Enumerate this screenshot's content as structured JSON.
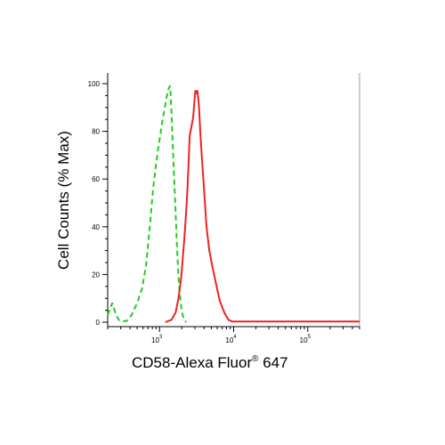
{
  "chart_data": {
    "type": "line",
    "title": "",
    "xlabel": "CD58-Alexa Fluor",
    "xlabel_superscript": "®",
    "xlabel_suffix": " 647",
    "ylabel": "Cell Counts (% Max)",
    "x_scale": "log",
    "xlim": [
      200,
      500000
    ],
    "ylim": [
      0,
      100
    ],
    "grid": false,
    "legend": "none",
    "y_ticks": [
      0,
      20,
      40,
      60,
      80,
      100
    ],
    "y_tick_labels": [
      "0",
      "20",
      "40",
      "60",
      "80",
      "100"
    ],
    "x_ticks": [
      {
        "value": 1000,
        "base": "10",
        "exp": "3"
      },
      {
        "value": 10000,
        "base": "10",
        "exp": "4"
      },
      {
        "value": 100000,
        "base": "10",
        "exp": "5"
      }
    ],
    "series": [
      {
        "style": "dashed",
        "color": "#22cc22",
        "points": [
          [
            200,
            3
          ],
          [
            230,
            8
          ],
          [
            260,
            3
          ],
          [
            290,
            0.5
          ],
          [
            360,
            0.5
          ],
          [
            420,
            3
          ],
          [
            500,
            8
          ],
          [
            580,
            14
          ],
          [
            660,
            24
          ],
          [
            740,
            40
          ],
          [
            820,
            56
          ],
          [
            880,
            64
          ],
          [
            950,
            72
          ],
          [
            1020,
            78
          ],
          [
            1100,
            85
          ],
          [
            1180,
            90
          ],
          [
            1260,
            95
          ],
          [
            1330,
            98
          ],
          [
            1380,
            99
          ],
          [
            1410,
            96
          ],
          [
            1450,
            88
          ],
          [
            1500,
            76
          ],
          [
            1570,
            62
          ],
          [
            1640,
            48
          ],
          [
            1710,
            34
          ],
          [
            1780,
            22
          ],
          [
            1860,
            13
          ],
          [
            1950,
            7
          ],
          [
            2050,
            3
          ],
          [
            2150,
            1
          ],
          [
            2300,
            0
          ]
        ]
      },
      {
        "style": "solid",
        "color": "#ee2222",
        "points": [
          [
            1200,
            0
          ],
          [
            1450,
            1
          ],
          [
            1650,
            4
          ],
          [
            1800,
            10
          ],
          [
            1950,
            18
          ],
          [
            2050,
            26
          ],
          [
            2200,
            38
          ],
          [
            2350,
            52
          ],
          [
            2450,
            64
          ],
          [
            2550,
            78
          ],
          [
            2700,
            82
          ],
          [
            2850,
            86
          ],
          [
            2950,
            92
          ],
          [
            3050,
            97
          ],
          [
            3150,
            96
          ],
          [
            3250,
            97
          ],
          [
            3400,
            91
          ],
          [
            3550,
            80
          ],
          [
            3750,
            68
          ],
          [
            4000,
            55
          ],
          [
            4300,
            40
          ],
          [
            4700,
            30
          ],
          [
            5200,
            23
          ],
          [
            5800,
            16
          ],
          [
            6500,
            9
          ],
          [
            7500,
            4
          ],
          [
            8500,
            1
          ],
          [
            9500,
            0.3
          ],
          [
            30000,
            0.3
          ],
          [
            100000,
            0.3
          ],
          [
            500000,
            0.3
          ]
        ]
      }
    ]
  }
}
